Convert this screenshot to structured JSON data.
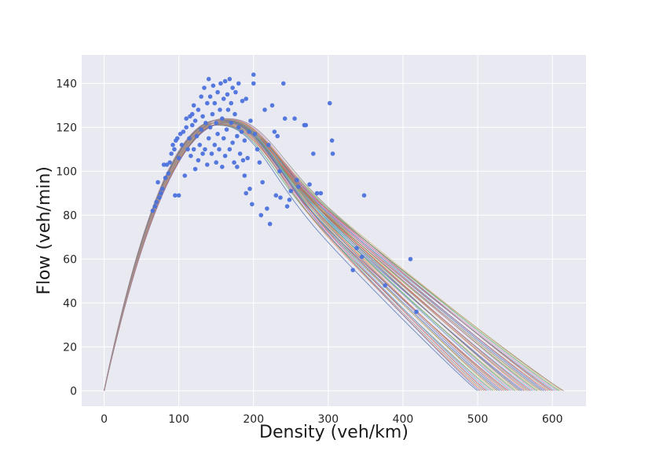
{
  "chart_data": {
    "type": "scatter",
    "title": "",
    "xlabel": "Density (veh/km)",
    "ylabel": "Flow (veh/min)",
    "xlim": [
      -30,
      645
    ],
    "ylim": [
      -7,
      153
    ],
    "xticks": [
      0,
      100,
      200,
      300,
      400,
      500,
      600
    ],
    "yticks": [
      0,
      20,
      40,
      60,
      80,
      100,
      120,
      140
    ],
    "grid": true,
    "background": "#e9e9f2",
    "point_color": "#4c72db",
    "series": [
      {
        "type": "scatter",
        "points": [
          [
            65,
            82
          ],
          [
            68,
            84
          ],
          [
            70,
            86
          ],
          [
            72,
            95
          ],
          [
            74,
            88
          ],
          [
            76,
            90
          ],
          [
            78,
            92
          ],
          [
            80,
            103
          ],
          [
            82,
            97
          ],
          [
            84,
            103
          ],
          [
            86,
            99
          ],
          [
            88,
            104
          ],
          [
            90,
            108
          ],
          [
            92,
            112
          ],
          [
            94,
            110
          ],
          [
            95,
            89
          ],
          [
            96,
            114
          ],
          [
            98,
            115
          ],
          [
            100,
            89
          ],
          [
            100,
            106
          ],
          [
            102,
            117
          ],
          [
            104,
            112
          ],
          [
            106,
            118
          ],
          [
            108,
            98
          ],
          [
            110,
            120
          ],
          [
            110,
            124
          ],
          [
            112,
            110
          ],
          [
            114,
            115
          ],
          [
            115,
            125
          ],
          [
            116,
            107
          ],
          [
            118,
            121
          ],
          [
            118,
            126
          ],
          [
            120,
            110
          ],
          [
            120,
            130
          ],
          [
            122,
            101
          ],
          [
            122,
            123
          ],
          [
            124,
            116
          ],
          [
            126,
            128
          ],
          [
            126,
            105
          ],
          [
            128,
            112
          ],
          [
            130,
            119
          ],
          [
            130,
            134
          ],
          [
            132,
            108
          ],
          [
            132,
            125
          ],
          [
            134,
            138
          ],
          [
            135,
            110
          ],
          [
            136,
            122
          ],
          [
            138,
            131
          ],
          [
            138,
            103
          ],
          [
            140,
            115
          ],
          [
            140,
            142
          ],
          [
            142,
            120
          ],
          [
            142,
            134
          ],
          [
            144,
            108
          ],
          [
            145,
            126
          ],
          [
            146,
            139
          ],
          [
            148,
            112
          ],
          [
            148,
            131
          ],
          [
            150,
            122
          ],
          [
            150,
            104
          ],
          [
            152,
            136
          ],
          [
            152,
            117
          ],
          [
            154,
            110
          ],
          [
            155,
            128
          ],
          [
            156,
            140
          ],
          [
            158,
            102
          ],
          [
            158,
            124
          ],
          [
            160,
            133
          ],
          [
            160,
            115
          ],
          [
            162,
            141
          ],
          [
            162,
            107
          ],
          [
            164,
            119
          ],
          [
            165,
            135
          ],
          [
            166,
            128
          ],
          [
            168,
            110
          ],
          [
            168,
            142
          ],
          [
            170,
            122
          ],
          [
            170,
            131
          ],
          [
            172,
            113
          ],
          [
            172,
            138
          ],
          [
            174,
            104
          ],
          [
            175,
            126
          ],
          [
            176,
            136
          ],
          [
            178,
            116
          ],
          [
            178,
            102
          ],
          [
            180,
            120
          ],
          [
            180,
            140
          ],
          [
            182,
            108
          ],
          [
            184,
            118
          ],
          [
            185,
            132
          ],
          [
            186,
            105
          ],
          [
            188,
            114
          ],
          [
            188,
            98
          ],
          [
            190,
            90
          ],
          [
            190,
            133
          ],
          [
            192,
            106
          ],
          [
            194,
            118
          ],
          [
            195,
            92
          ],
          [
            196,
            123
          ],
          [
            198,
            85
          ],
          [
            200,
            144
          ],
          [
            200,
            140
          ],
          [
            202,
            117
          ],
          [
            205,
            110
          ],
          [
            208,
            104
          ],
          [
            210,
            80
          ],
          [
            212,
            95
          ],
          [
            215,
            128
          ],
          [
            218,
            83
          ],
          [
            220,
            112
          ],
          [
            222,
            76
          ],
          [
            225,
            130
          ],
          [
            228,
            118
          ],
          [
            230,
            89
          ],
          [
            232,
            116
          ],
          [
            235,
            100
          ],
          [
            236,
            88
          ],
          [
            240,
            140
          ],
          [
            242,
            124
          ],
          [
            245,
            84
          ],
          [
            248,
            87
          ],
          [
            250,
            91
          ],
          [
            255,
            124
          ],
          [
            258,
            96
          ],
          [
            260,
            93
          ],
          [
            268,
            121
          ],
          [
            270,
            121
          ],
          [
            275,
            94
          ],
          [
            280,
            108
          ],
          [
            285,
            90
          ],
          [
            290,
            90
          ],
          [
            302,
            131
          ],
          [
            305,
            114
          ],
          [
            306,
            108
          ],
          [
            333,
            55
          ],
          [
            338,
            65
          ],
          [
            345,
            61
          ],
          [
            348,
            89
          ],
          [
            376,
            48
          ],
          [
            410,
            60
          ],
          [
            418,
            36
          ]
        ]
      },
      {
        "type": "line-family",
        "model": "Greenshields-type flow-density curves",
        "curve_count": 40,
        "free_flow_speed": [
          1.08,
          1.16
        ],
        "jam_density": [
          500,
          615
        ],
        "max_flow": [
          121,
          124
        ],
        "colors": [
          "#4c72b0",
          "#55a868",
          "#c44e52",
          "#8172b2",
          "#ccb974",
          "#64b5cd",
          "#dd8452",
          "#937860",
          "#da8bc3",
          "#8c8c8c"
        ]
      }
    ]
  }
}
